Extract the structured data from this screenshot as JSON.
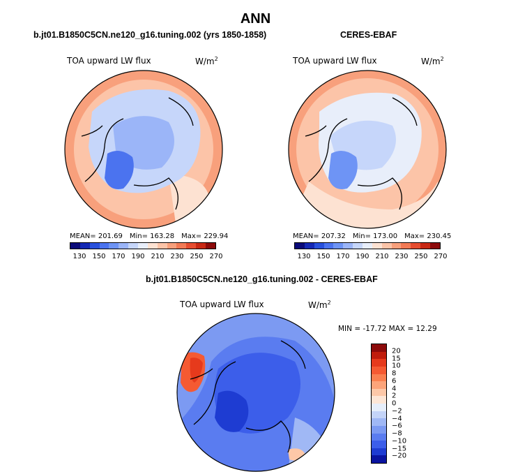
{
  "figure_title": "ANN",
  "panels": [
    {
      "title": "b.jt01.B1850C5CN.ne120_g16.tuning.002 (yrs 1850-1858)",
      "variable": "TOA upward LW flux",
      "unit_base": "W/m",
      "unit_exp": "2",
      "mean": "MEAN= 201.69",
      "min": "Min= 163.28",
      "max": "Max= 229.94"
    },
    {
      "title": "CERES-EBAF",
      "variable": "TOA upward LW flux",
      "unit_base": "W/m",
      "unit_exp": "2",
      "mean": "MEAN= 207.32",
      "min": "Min= 173.00",
      "max": "Max= 230.45"
    },
    {
      "title": "b.jt01.B1850C5CN.ne120_g16.tuning.002 - CERES-EBAF",
      "variable": "TOA upward LW flux",
      "unit_base": "W/m",
      "unit_exp": "2",
      "minmax": "MIN = -17.72 MAX =  12.29"
    }
  ],
  "colorbar_abs": {
    "colors": [
      "#0a0a78",
      "#1428b4",
      "#2850dc",
      "#4b73ef",
      "#6e94f5",
      "#9bb5f8",
      "#c6d6fa",
      "#e8eefa",
      "#fde2d2",
      "#fcc4a8",
      "#f8a07c",
      "#f27a55",
      "#e64d30",
      "#c82814",
      "#8c0a0a"
    ],
    "labels": [
      "130",
      "150",
      "170",
      "190",
      "210",
      "230",
      "250",
      "270"
    ]
  },
  "colorbar_diff": {
    "colors": [
      "#8c0a0a",
      "#c01c0c",
      "#e63a1c",
      "#f55a32",
      "#fa8050",
      "#fca47a",
      "#fdc8a8",
      "#fde6d6",
      "#e6eefa",
      "#c4d4f8",
      "#a0b8f5",
      "#7c9af2",
      "#5a7cf0",
      "#3c5eea",
      "#1e3cd2",
      "#0a14a0"
    ],
    "labels": [
      "20",
      "15",
      "10",
      "8",
      "6",
      "4",
      "2",
      "0",
      "-2",
      "-4",
      "-6",
      "-8",
      "-10",
      "-15",
      "-20"
    ]
  }
}
